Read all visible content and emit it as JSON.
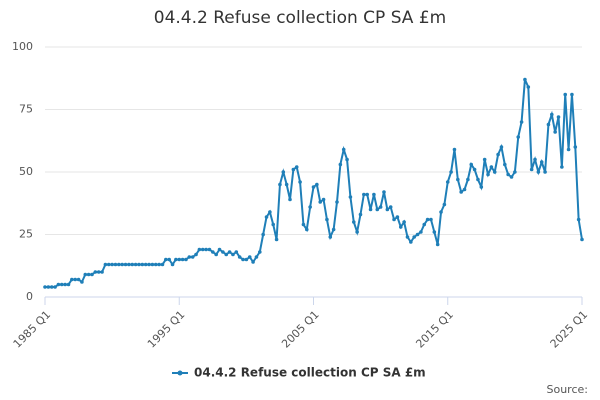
{
  "chart_data": {
    "type": "line",
    "title": "04.4.2 Refuse collection CP SA £m",
    "categories": [
      "1985 Q1",
      null,
      null,
      null,
      null,
      null,
      null,
      null,
      null,
      null,
      null,
      null,
      null,
      null,
      null,
      null,
      null,
      null,
      null,
      null,
      null,
      null,
      null,
      null,
      null,
      null,
      null,
      null,
      null,
      null,
      null,
      null,
      null,
      null,
      null,
      null,
      null,
      null,
      null,
      null,
      "1995 Q1",
      null,
      null,
      null,
      null,
      null,
      null,
      null,
      null,
      null,
      null,
      null,
      null,
      null,
      null,
      null,
      null,
      null,
      null,
      null,
      null,
      null,
      null,
      null,
      null,
      null,
      null,
      null,
      null,
      null,
      null,
      null,
      null,
      null,
      null,
      null,
      null,
      null,
      null,
      null,
      "2005 Q1",
      null,
      null,
      null,
      null,
      null,
      null,
      null,
      null,
      null,
      null,
      null,
      null,
      null,
      null,
      null,
      null,
      null,
      null,
      null,
      null,
      null,
      null,
      null,
      null,
      null,
      null,
      null,
      null,
      null,
      null,
      null,
      null,
      null,
      null,
      null,
      null,
      null,
      null,
      null,
      "2015 Q1",
      null,
      null,
      null,
      null,
      null,
      null,
      null,
      null,
      null,
      null,
      null,
      null,
      null,
      null,
      null,
      null,
      null,
      null,
      null,
      null,
      null,
      null,
      null,
      null,
      null,
      null,
      null,
      null,
      null,
      null,
      null,
      null,
      null,
      null,
      null,
      null,
      null,
      null,
      null,
      "2025 Q1"
    ],
    "series": [
      {
        "name": "04.4.2 Refuse collection CP SA £m",
        "color": "#1f7fb8",
        "values": [
          4,
          4,
          4,
          4,
          5,
          5,
          5,
          5,
          7,
          7,
          7,
          6,
          9,
          9,
          9,
          10,
          10,
          10,
          13,
          13,
          13,
          13,
          13,
          13,
          13,
          13,
          13,
          13,
          13,
          13,
          13,
          13,
          13,
          13,
          13,
          13,
          15,
          15,
          13,
          15,
          15,
          15,
          15,
          16,
          16,
          17,
          19,
          19,
          19,
          19,
          18,
          17,
          19,
          18,
          17,
          18,
          17,
          18,
          16,
          15,
          15,
          16,
          14,
          16,
          18,
          25,
          32,
          34,
          29,
          23,
          45,
          50,
          45,
          39,
          51,
          52,
          46,
          29,
          27,
          36,
          44,
          45,
          38,
          39,
          31,
          24,
          27,
          38,
          53,
          59,
          55,
          40,
          30,
          26,
          33,
          41,
          41,
          35,
          41,
          35,
          36,
          42,
          35,
          36,
          31,
          32,
          28,
          30,
          24,
          22,
          24,
          25,
          26,
          29,
          31,
          31,
          26,
          21,
          34,
          37,
          46,
          50,
          59,
          47,
          42,
          43,
          47,
          53,
          51,
          47,
          44,
          55,
          49,
          52,
          50,
          57,
          60,
          53,
          49,
          48,
          50,
          64,
          70,
          87,
          84,
          51,
          55,
          50,
          54,
          50,
          69,
          73,
          66,
          72,
          52,
          81,
          59,
          81,
          60,
          31,
          23
        ]
      }
    ],
    "ylim": [
      0,
      100
    ],
    "yticks": [
      0,
      25,
      50,
      75,
      100
    ],
    "grid": true,
    "source": "Source:"
  }
}
